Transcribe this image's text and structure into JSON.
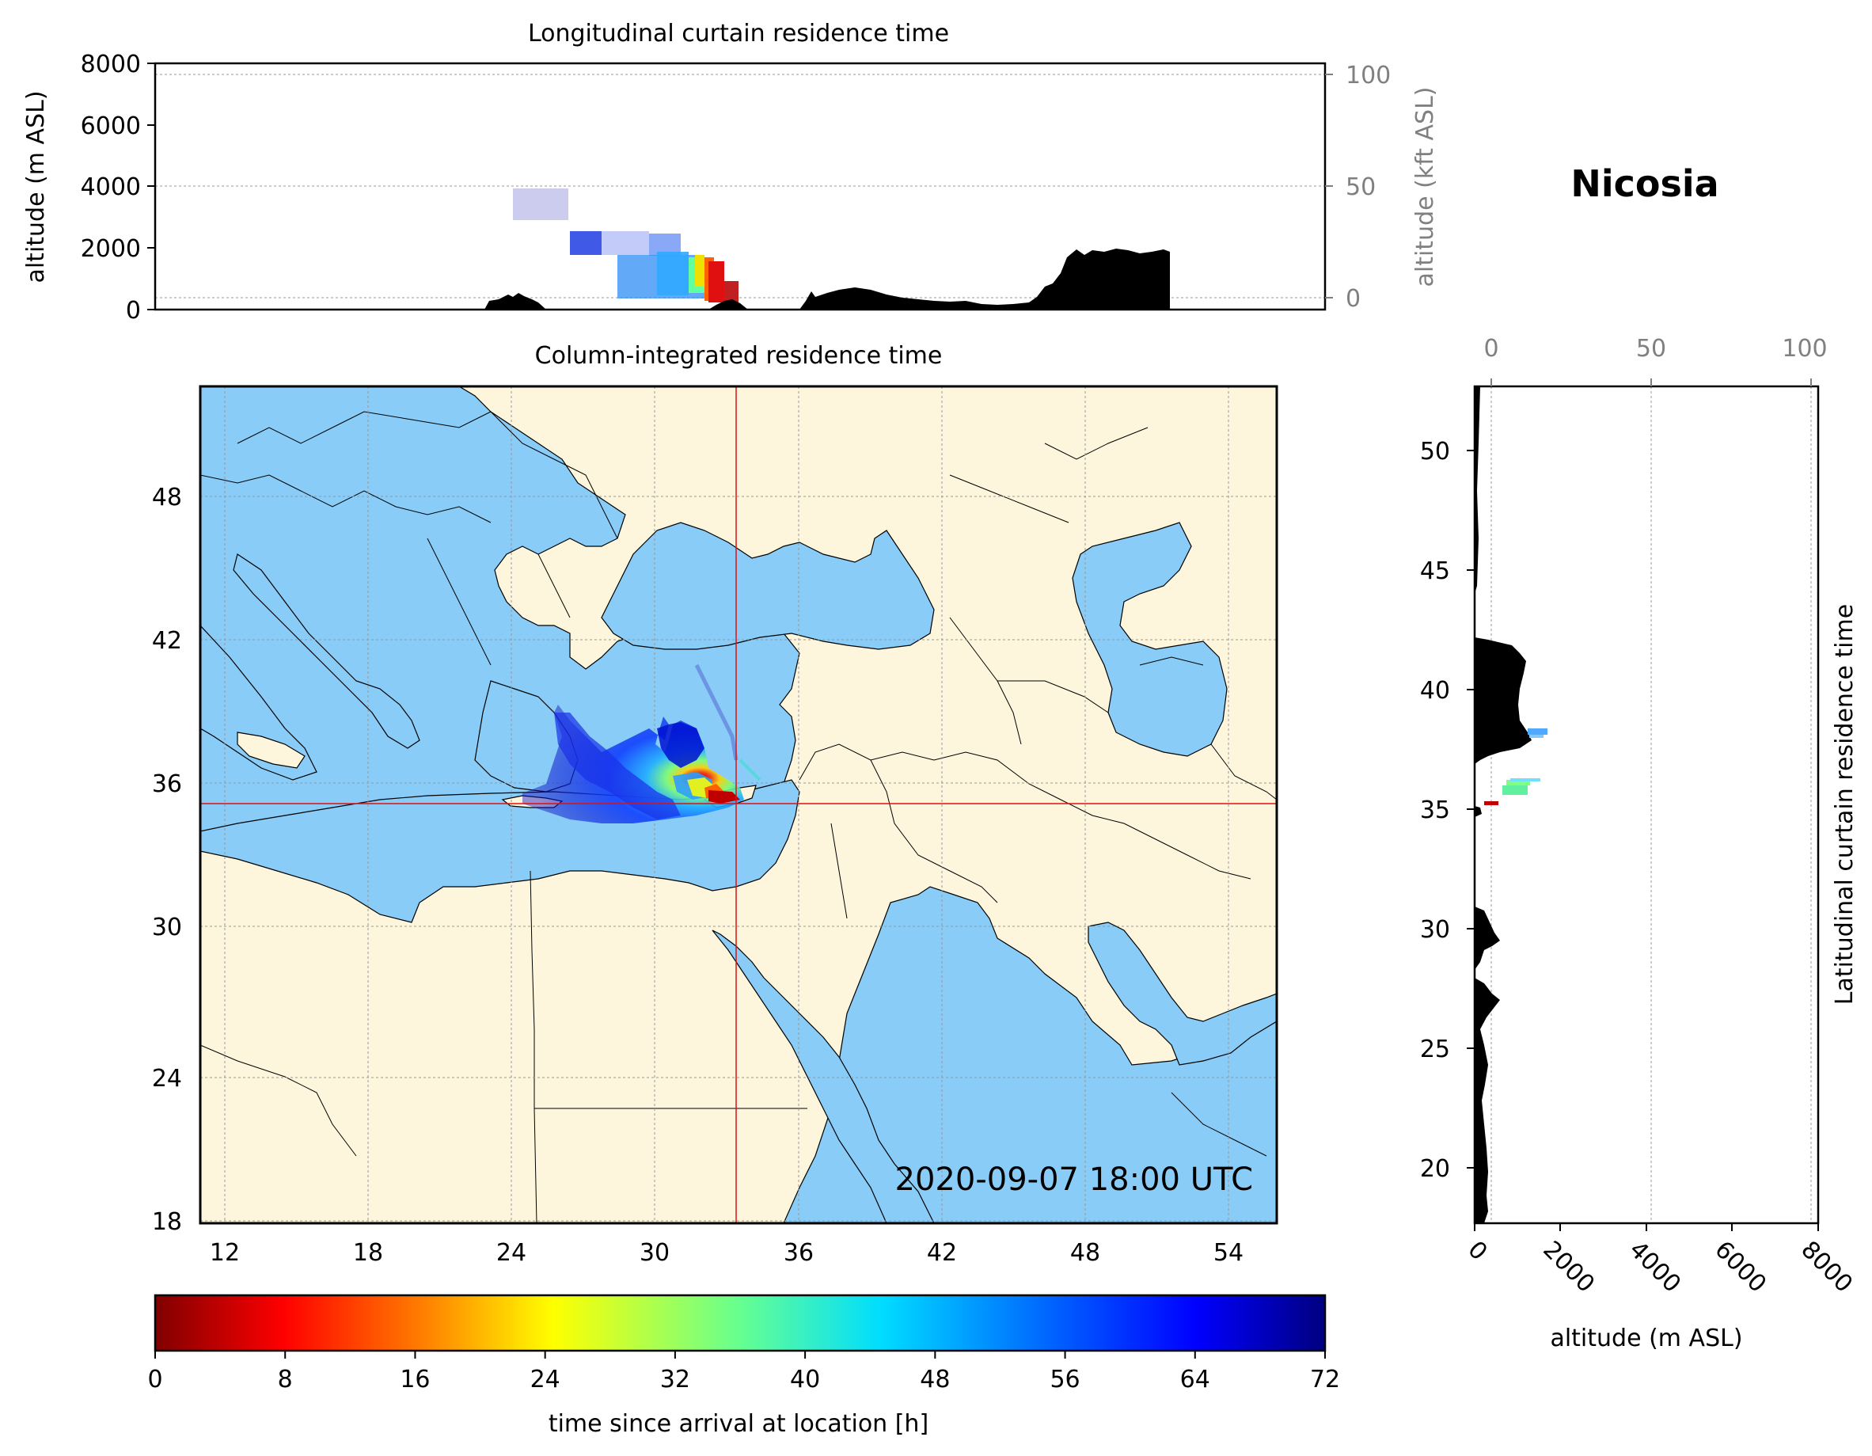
{
  "station_name": "Nicosia",
  "timestamp": "2020-09-07 18:00 UTC",
  "colors": {
    "land": "#fdf5dc",
    "sea": "#88ccf7",
    "terrain": "#000000",
    "crosshair": "#e01010",
    "secondary_axis": "#808080"
  },
  "location": {
    "lon": 33.4,
    "lat": 35.2
  },
  "top_panel": {
    "title": "Longitudinal curtain residence time",
    "ylabel": "altitude (m ASL)",
    "ylabel_right": "altitude (kft ASL)",
    "yticks": [
      "0",
      "2000",
      "4000",
      "6000",
      "8000"
    ],
    "yticks_right": [
      "0",
      "50",
      "100"
    ]
  },
  "map_panel": {
    "title": "Column-integrated residence time",
    "xticks": [
      "12",
      "18",
      "24",
      "30",
      "36",
      "42",
      "48",
      "54"
    ],
    "yticks": [
      "18",
      "24",
      "30",
      "36",
      "42",
      "48"
    ],
    "lon_range": [
      10.9,
      55.9
    ],
    "lat_range": [
      17.9,
      52.9
    ]
  },
  "right_panel": {
    "ylabel_right": "Latitudinal curtain residence time",
    "xlabel": "altitude (m ASL)",
    "xticks": [
      "0",
      "2000",
      "4000",
      "6000",
      "8000"
    ],
    "xticks_top": [
      "0",
      "50",
      "100"
    ],
    "yticks": [
      "20",
      "25",
      "30",
      "35",
      "40",
      "45",
      "50"
    ]
  },
  "colorbar": {
    "label": "time since arrival at location [h]",
    "ticks": [
      "0",
      "8",
      "16",
      "24",
      "32",
      "40",
      "48",
      "56",
      "64",
      "72"
    ],
    "range": [
      0,
      72
    ],
    "colormap": "jet_r"
  }
}
